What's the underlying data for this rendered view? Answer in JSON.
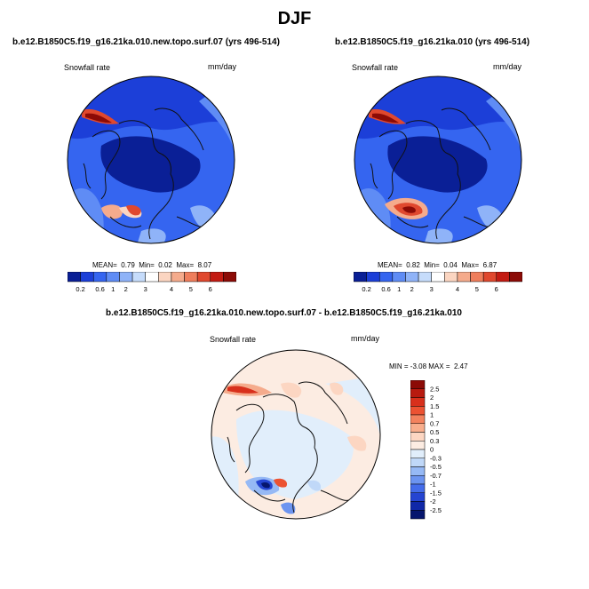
{
  "figure_title": "DJF",
  "panels": {
    "left": {
      "title": "b.e12.B1850C5.f19_g16.21ka.010.new.topo.surf.07 (yrs 496-514)",
      "variable": "Snowfall rate",
      "units": "mm/day",
      "stats": {
        "mean_label": "MEAN=",
        "mean": "0.79",
        "min_label": "Min=",
        "min": "0.02",
        "max_label": "Max=",
        "max": "8.07"
      }
    },
    "right": {
      "title": "b.e12.B1850C5.f19_g16.21ka.010 (yrs 496-514)",
      "variable": "Snowfall rate",
      "units": "mm/day",
      "stats": {
        "mean_label": "MEAN=",
        "mean": "0.82",
        "min_label": "Min=",
        "min": "0.04",
        "max_label": "Max=",
        "max": "6.87"
      }
    },
    "diff": {
      "title": "b.e12.B1850C5.f19_g16.21ka.010.new.topo.surf.07 - b.e12.B1850C5.f19_g16.21ka.010",
      "variable": "Snowfall rate",
      "units": "mm/day",
      "stats": {
        "min_label": "MIN =",
        "min": "-3.08",
        "max_label": "MAX =",
        "max": "2.47"
      }
    }
  },
  "colorbar_abs": {
    "colors": [
      "#0a1f96",
      "#1c3fd8",
      "#3565f0",
      "#5f8cf5",
      "#8fb3f8",
      "#c6dcfb",
      "#ffffff",
      "#fbd5c1",
      "#f5ab8c",
      "#ef7e5c",
      "#e0482e",
      "#c31b12",
      "#8c0b06"
    ],
    "labels": [
      "0.2",
      "0.6",
      "1",
      "2",
      "3",
      "4",
      "5",
      "6"
    ]
  },
  "colorbar_diff": {
    "colors": [
      "#8c0b06",
      "#b81a10",
      "#d8301c",
      "#ec5232",
      "#f3825e",
      "#f8ae8d",
      "#fcd6c2",
      "#fcece2",
      "#e1eefb",
      "#c0d8f8",
      "#96b9f5",
      "#6c94f0",
      "#446cea",
      "#2545d2",
      "#1028a8",
      "#06166e"
    ],
    "labels": [
      "2.5",
      "2",
      "1.5",
      "1",
      "0.7",
      "0.5",
      "0.3",
      "0",
      "-0.3",
      "-0.5",
      "-0.7",
      "-1",
      "-1.5",
      "-2",
      "-2.5"
    ]
  }
}
